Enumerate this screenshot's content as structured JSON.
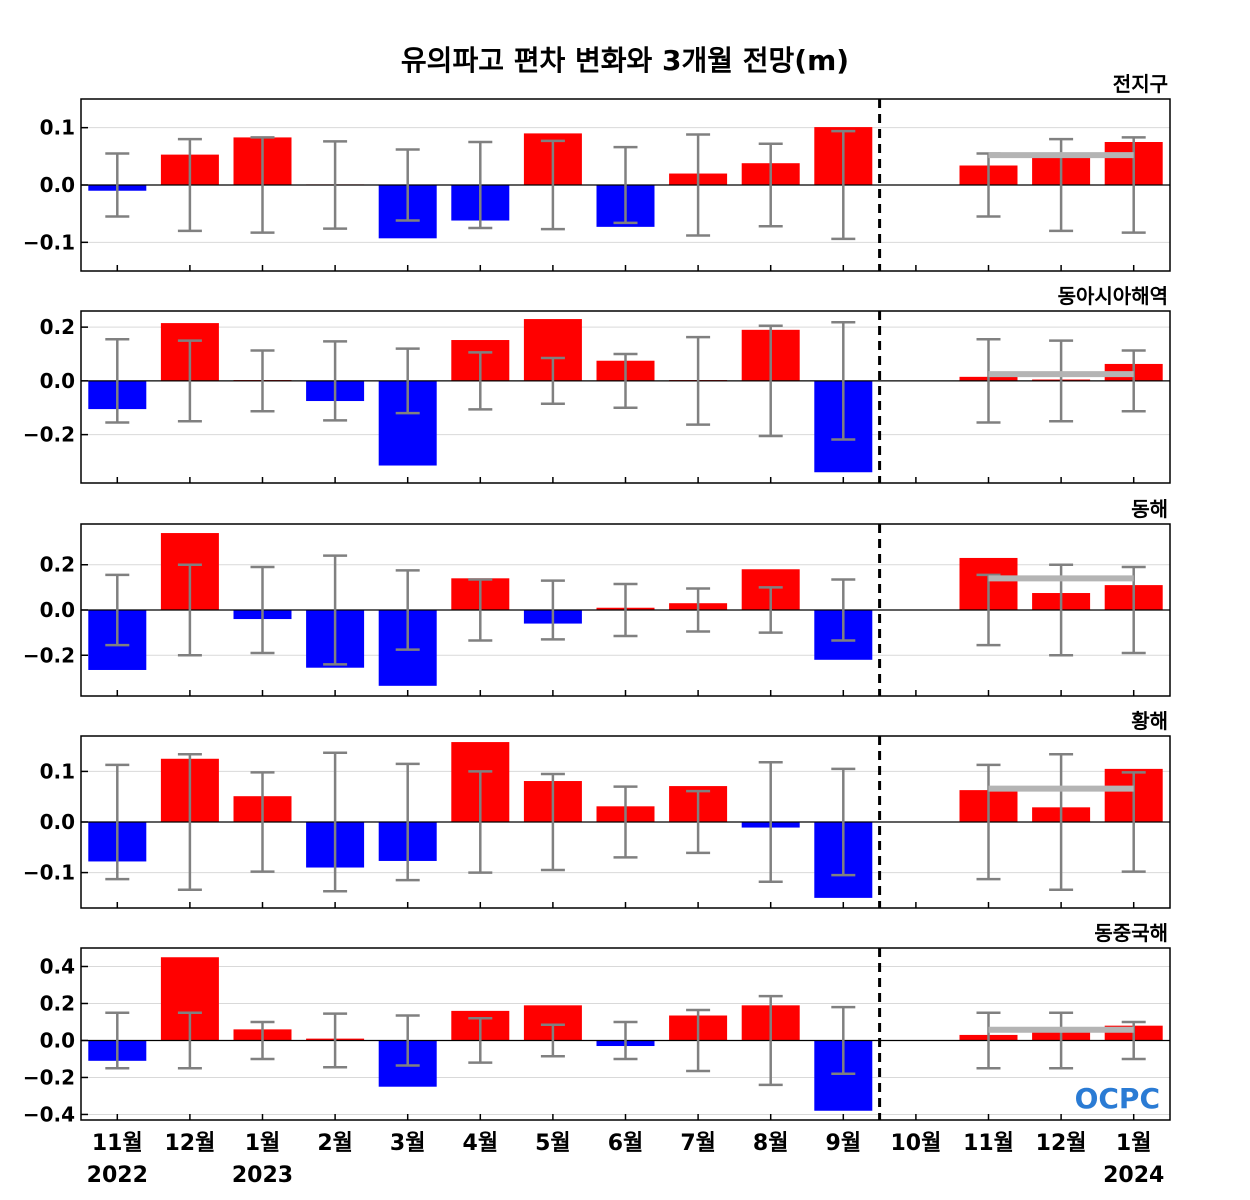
{
  "figure": {
    "title": "유의파고 편차 변화와 3개월 전망(m)",
    "logo_text": "OCPC",
    "colors": {
      "positive": "#ff0000",
      "negative": "#0000ff",
      "error_bar": "#808080",
      "outlook_line": "#b4b4b4",
      "divider": "#000000"
    }
  },
  "chart_data": {
    "type": "bar",
    "categories": [
      "11월",
      "12월",
      "1월",
      "2월",
      "3월",
      "4월",
      "5월",
      "6월",
      "7월",
      "8월",
      "9월",
      "10월",
      "11월",
      "12월",
      "1월"
    ],
    "year_labels": [
      {
        "index": 0,
        "text": "2022"
      },
      {
        "index": 2,
        "text": "2023"
      },
      {
        "index": 14,
        "text": "2024"
      }
    ],
    "forecast_divider_after_index": 10.5,
    "panels": [
      {
        "title": "전지구",
        "ylim": [
          -0.15,
          0.15
        ],
        "yticks": [
          -0.1,
          0.0,
          0.1
        ],
        "ytick_labels": [
          "−0.1",
          "0.0",
          "0.1"
        ],
        "values": [
          -0.01,
          0.053,
          0.083,
          0.001,
          -0.093,
          -0.062,
          0.09,
          -0.073,
          0.02,
          0.038,
          0.101,
          0.0,
          0.034,
          0.052,
          0.075
        ],
        "error": [
          0.055,
          0.08,
          0.083,
          0.076,
          0.062,
          0.075,
          0.077,
          0.066,
          0.088,
          0.072,
          0.094,
          0.0,
          0.055,
          0.08,
          0.083
        ],
        "outlook": 0.052
      },
      {
        "title": "동아시아해역",
        "ylim": [
          -0.38,
          0.26
        ],
        "yticks": [
          -0.2,
          0.0,
          0.2
        ],
        "ytick_labels": [
          "−0.2",
          "0.0",
          "0.2"
        ],
        "values": [
          -0.105,
          0.215,
          0.003,
          -0.075,
          -0.315,
          0.152,
          0.23,
          0.075,
          0.003,
          0.19,
          -0.34,
          0.0,
          0.015,
          0.005,
          0.063
        ],
        "error": [
          0.155,
          0.15,
          0.113,
          0.147,
          0.12,
          0.106,
          0.085,
          0.1,
          0.163,
          0.205,
          0.218,
          0.0,
          0.155,
          0.15,
          0.113
        ],
        "outlook": 0.025
      },
      {
        "title": "동해",
        "ylim": [
          -0.38,
          0.38
        ],
        "yticks": [
          -0.2,
          0.0,
          0.2
        ],
        "ytick_labels": [
          "−0.2",
          "0.0",
          "0.2"
        ],
        "values": [
          -0.265,
          0.34,
          -0.04,
          -0.255,
          -0.335,
          0.14,
          -0.06,
          0.01,
          0.03,
          0.18,
          -0.22,
          0.0,
          0.23,
          0.075,
          0.11
        ],
        "error": [
          0.155,
          0.2,
          0.19,
          0.24,
          0.175,
          0.135,
          0.13,
          0.115,
          0.095,
          0.1,
          0.135,
          0.0,
          0.155,
          0.2,
          0.19
        ],
        "outlook": 0.14
      },
      {
        "title": "황해",
        "ylim": [
          -0.17,
          0.17
        ],
        "yticks": [
          -0.1,
          0.0,
          0.1
        ],
        "ytick_labels": [
          "−0.1",
          "0.0",
          "0.1"
        ],
        "values": [
          -0.078,
          0.125,
          0.051,
          -0.09,
          -0.077,
          0.158,
          0.081,
          0.031,
          0.071,
          -0.011,
          -0.15,
          0.0,
          0.063,
          0.029,
          0.105
        ],
        "error": [
          0.113,
          0.134,
          0.098,
          0.137,
          0.115,
          0.1,
          0.095,
          0.07,
          0.061,
          0.118,
          0.105,
          0.0,
          0.113,
          0.134,
          0.098
        ],
        "outlook": 0.066
      },
      {
        "title": "동중국해",
        "ylim": [
          -0.43,
          0.5
        ],
        "yticks": [
          -0.4,
          -0.2,
          0.0,
          0.2,
          0.4
        ],
        "ytick_labels": [
          "−0.4",
          "−0.2",
          "0.0",
          "0.2",
          "0.4"
        ],
        "values": [
          -0.11,
          0.45,
          0.06,
          0.01,
          -0.25,
          0.16,
          0.19,
          -0.03,
          0.135,
          0.19,
          -0.38,
          0.0,
          0.03,
          0.05,
          0.08
        ],
        "error": [
          0.15,
          0.15,
          0.1,
          0.145,
          0.135,
          0.12,
          0.085,
          0.1,
          0.165,
          0.24,
          0.18,
          0.0,
          0.15,
          0.15,
          0.1
        ],
        "outlook": 0.058
      }
    ]
  }
}
